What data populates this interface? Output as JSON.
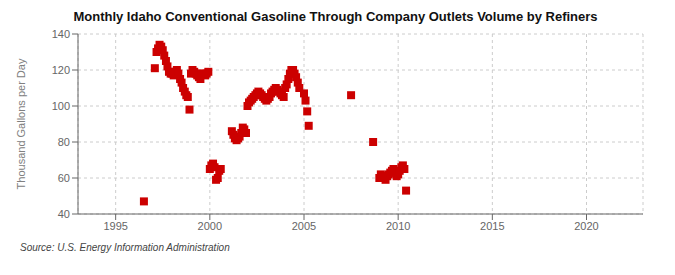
{
  "chart_data": {
    "type": "scatter",
    "title": "Monthly Idaho Conventional Gasoline Through Company Outlets Volume by Refiners",
    "ylabel": "Thousand Gallons per Day",
    "annotations": [
      "Source: U.S. Energy Information Administration"
    ],
    "color": "#CC0000",
    "marker": "square",
    "grid": true,
    "xlim": [
      1993,
      2023
    ],
    "ylim": [
      40,
      140
    ],
    "xticks": [
      1995,
      2000,
      2005,
      2010,
      2015,
      2020
    ],
    "yticks": [
      40,
      60,
      80,
      100,
      120,
      140
    ],
    "x": [
      1996.5,
      1997.08,
      1997.17,
      1997.25,
      1997.33,
      1997.42,
      1997.5,
      1997.58,
      1997.67,
      1997.75,
      1997.83,
      1997.92,
      1998.0,
      1998.08,
      1998.17,
      1998.25,
      1998.33,
      1998.42,
      1998.5,
      1998.58,
      1998.67,
      1998.75,
      1998.83,
      1998.92,
      1999.0,
      1999.08,
      1999.17,
      1999.25,
      1999.33,
      1999.42,
      1999.5,
      1999.58,
      1999.67,
      1999.75,
      1999.83,
      1999.92,
      2000.0,
      2000.08,
      2000.17,
      2000.25,
      2000.33,
      2000.42,
      2000.5,
      2000.58,
      2001.17,
      2001.25,
      2001.33,
      2001.42,
      2001.5,
      2001.58,
      2001.67,
      2001.75,
      2001.83,
      2001.92,
      2002.0,
      2002.08,
      2002.17,
      2002.25,
      2002.33,
      2002.42,
      2002.5,
      2002.58,
      2002.67,
      2002.75,
      2002.83,
      2002.92,
      2003.0,
      2003.08,
      2003.17,
      2003.25,
      2003.33,
      2003.42,
      2003.5,
      2003.58,
      2003.67,
      2003.75,
      2003.83,
      2003.92,
      2004.0,
      2004.08,
      2004.17,
      2004.25,
      2004.33,
      2004.42,
      2004.5,
      2004.58,
      2004.67,
      2004.75,
      2005.0,
      2005.08,
      2005.17,
      2005.25,
      2007.5,
      2008.67,
      2009.0,
      2009.08,
      2009.17,
      2009.25,
      2009.33,
      2009.42,
      2009.5,
      2009.58,
      2009.67,
      2009.75,
      2009.83,
      2009.92,
      2010.0,
      2010.08,
      2010.17,
      2010.25,
      2010.33,
      2010.42
    ],
    "values": [
      47,
      121,
      130,
      132,
      134,
      133,
      131,
      128,
      125,
      122,
      119,
      118,
      118,
      117,
      119,
      120,
      118,
      115,
      113,
      110,
      108,
      106,
      105,
      98,
      118,
      120,
      119,
      118,
      117,
      116,
      115,
      118,
      118,
      117,
      118,
      119,
      65,
      67,
      68,
      66,
      59,
      60,
      64,
      65,
      86,
      84,
      82,
      81,
      82,
      83,
      85,
      88,
      87,
      85,
      100,
      102,
      103,
      104,
      105,
      106,
      107,
      108,
      107,
      106,
      105,
      104,
      103,
      104,
      105,
      107,
      108,
      109,
      110,
      109,
      108,
      107,
      106,
      105,
      110,
      112,
      115,
      118,
      120,
      120,
      118,
      116,
      113,
      110,
      107,
      103,
      97,
      89,
      106,
      80,
      60,
      62,
      61,
      60,
      59,
      61,
      62,
      63,
      64,
      65,
      63,
      61,
      62,
      64,
      66,
      67,
      65,
      53
    ]
  }
}
